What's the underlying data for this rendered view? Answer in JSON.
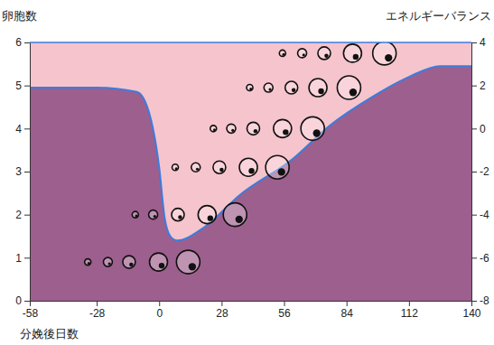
{
  "chart_data": {
    "type": "area",
    "ylabel": "卵胞数",
    "y2label": "エネルギーバランス",
    "xlabel": "分娩後日数",
    "x": [
      -58,
      -28,
      -10,
      -5,
      0,
      2.4,
      5,
      8,
      20,
      36,
      60,
      76,
      96,
      112,
      126,
      140
    ],
    "series": [
      {
        "values": [
          1.9,
          1.9,
          1.7,
          0.9,
          -1.8,
          -4.1,
          -5.0,
          -5.2,
          -4.6,
          -3.1,
          -1.4,
          0.1,
          1.5,
          2.4,
          2.9,
          2.9
        ],
        "axis": "y2",
        "color": "#3b7ddd"
      }
    ],
    "follicle_waves": [
      {
        "y": 0.9,
        "x": [
          -32,
          -23,
          -13.5,
          -0.3,
          13
        ]
      },
      {
        "y": 2.0,
        "x": [
          -10.7,
          -2.7,
          8.4,
          21.5,
          34
        ]
      },
      {
        "y": 3.1,
        "x": [
          7.2,
          16.4,
          27,
          40,
          53
        ]
      },
      {
        "y": 4.0,
        "x": [
          24.3,
          32.3,
          42.2,
          55.3,
          68.8
        ]
      },
      {
        "y": 4.95,
        "x": [
          40.6,
          49,
          59.3,
          71.2,
          85.1
        ]
      },
      {
        "y": 5.75,
        "x": [
          55.3,
          64.1,
          74,
          86.7,
          101
        ]
      }
    ],
    "xlim": [
      -58,
      140
    ],
    "xticks": [
      -58,
      -28,
      0,
      28,
      56,
      84,
      112,
      140
    ],
    "ylim": [
      0,
      6
    ],
    "yticks": [
      0,
      1,
      2,
      3,
      4,
      5,
      6
    ],
    "y2lim": [
      -8,
      4
    ],
    "y2ticks": [
      -8,
      -6,
      -4,
      -2,
      0,
      2,
      4
    ]
  }
}
